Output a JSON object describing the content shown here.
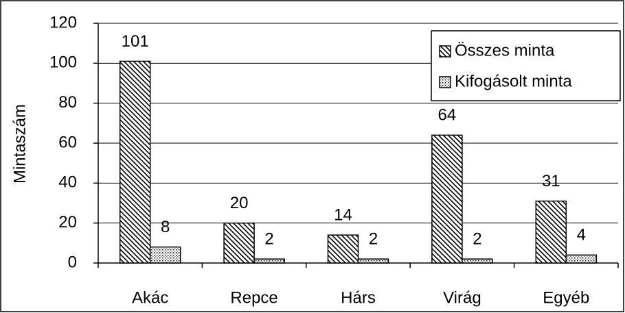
{
  "chart_data": {
    "type": "bar",
    "y_label": "Mintaszám",
    "categories": [
      "Akác",
      "Repce",
      "Hárs",
      "Virág",
      "Egyéb"
    ],
    "series": [
      {
        "name": "Összes minta",
        "color": "#000000",
        "pattern": "diagonal",
        "values": [
          101,
          20,
          14,
          64,
          31
        ]
      },
      {
        "name": "Kifogásolt minta",
        "color": "#000000",
        "pattern": "dots",
        "values": [
          8,
          2,
          2,
          2,
          4
        ]
      }
    ],
    "ylim": [
      0,
      120
    ],
    "yticks": [
      0,
      20,
      40,
      60,
      80,
      100,
      120
    ],
    "grid": true,
    "legend": "upper right"
  }
}
